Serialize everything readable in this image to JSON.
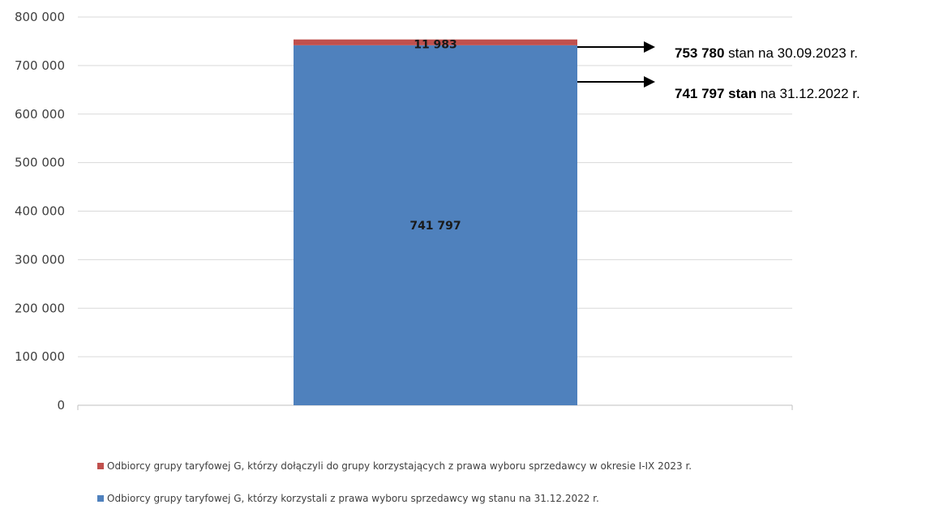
{
  "chart_data": {
    "type": "bar",
    "stacked": true,
    "categories": [
      ""
    ],
    "series": [
      {
        "name": "Odbiorcy grupy taryfowej G, którzy korzystali z prawa wyboru sprzedawcy wg stanu na 31.12.2022 r.",
        "values": [
          741797
        ],
        "label": "741 797",
        "color": "#4f81bd"
      },
      {
        "name": "Odbiorcy grupy taryfowej G, którzy dołączyli do grupy korzystających z  prawa wyboru sprzedawcy w okresie I-IX 2023 r.",
        "values": [
          11983
        ],
        "label": "11 983",
        "color": "#c0504d"
      }
    ],
    "ylim": [
      0,
      800000
    ],
    "yticks": [
      "0",
      "100 000",
      "200 000",
      "300 000",
      "400 000",
      "500 000",
      "600 000",
      "700 000",
      "800 000"
    ],
    "grid": true,
    "legend_position": "bottom",
    "title": "",
    "xlabel": "",
    "ylabel": ""
  },
  "annotations": [
    {
      "bold": "753 780",
      "text": " stan na 30.09.2023 r."
    },
    {
      "bold": "741 797 stan",
      "text": " na 31.12.2022  r."
    }
  ],
  "legend": [
    {
      "color": "#c0504d",
      "text": "Odbiorcy grupy taryfowej G, którzy dołączyli do grupy korzystających z  prawa wyboru sprzedawcy w okresie I-IX 2023 r."
    },
    {
      "color": "#4f81bd",
      "text": "Odbiorcy grupy taryfowej G, którzy korzystali z prawa wyboru sprzedawcy wg stanu na 31.12.2022 r."
    }
  ]
}
